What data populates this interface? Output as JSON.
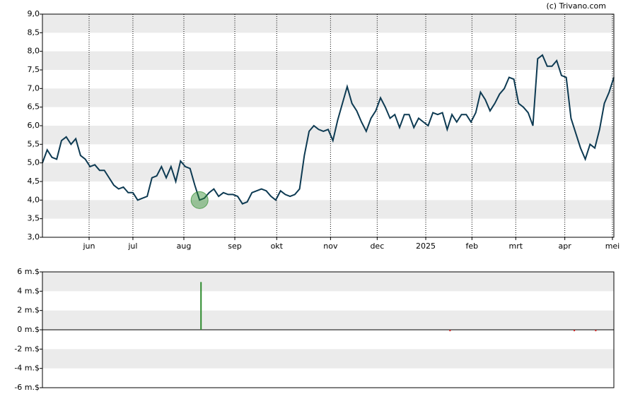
{
  "chart_data": [
    {
      "type": "line",
      "credit": "(c) Trivano.com",
      "color": "#0d3a52",
      "band_color": "#ebebeb",
      "grid": true,
      "xlim": [
        0,
        120
      ],
      "xticks": [
        {
          "value": 9.8,
          "label": "jun"
        },
        {
          "value": 19.0,
          "label": "jul"
        },
        {
          "value": 29.7,
          "label": "aug"
        },
        {
          "value": 40.4,
          "label": "sep"
        },
        {
          "value": 49.2,
          "label": "okt"
        },
        {
          "value": 60.5,
          "label": "nov"
        },
        {
          "value": 70.3,
          "label": "dec"
        },
        {
          "value": 80.5,
          "label": "2025"
        },
        {
          "value": 90.2,
          "label": "feb"
        },
        {
          "value": 99.4,
          "label": "mrt"
        },
        {
          "value": 109.7,
          "label": "apr"
        },
        {
          "value": 119.7,
          "label": "mei"
        }
      ],
      "ylim": [
        3,
        9
      ],
      "yticks": [
        {
          "value": 3,
          "label": "3,0"
        },
        {
          "value": 3.5,
          "label": "3,5"
        },
        {
          "value": 4,
          "label": "4,0"
        },
        {
          "value": 4.5,
          "label": "4,5"
        },
        {
          "value": 5,
          "label": "5,0"
        },
        {
          "value": 5.5,
          "label": "5,5"
        },
        {
          "value": 6,
          "label": "6,0"
        },
        {
          "value": 6.5,
          "label": "6,5"
        },
        {
          "value": 7,
          "label": "7,0"
        },
        {
          "value": 7.5,
          "label": "7,5"
        },
        {
          "value": 8,
          "label": "8,0"
        },
        {
          "value": 8.5,
          "label": "8,5"
        },
        {
          "value": 9,
          "label": "9,0"
        }
      ],
      "values": [
        5.0,
        5.35,
        5.15,
        5.1,
        5.6,
        5.7,
        5.5,
        5.65,
        5.2,
        5.1,
        4.9,
        4.95,
        4.8,
        4.8,
        4.6,
        4.4,
        4.3,
        4.35,
        4.2,
        4.2,
        4.0,
        4.05,
        4.1,
        4.6,
        4.65,
        4.9,
        4.6,
        4.9,
        4.5,
        5.05,
        4.9,
        4.85,
        4.4,
        4.0,
        4.05,
        4.2,
        4.3,
        4.1,
        4.2,
        4.15,
        4.15,
        4.1,
        3.9,
        3.95,
        4.2,
        4.25,
        4.3,
        4.25,
        4.1,
        4.0,
        4.25,
        4.15,
        4.1,
        4.15,
        4.3,
        5.2,
        5.85,
        6.0,
        5.9,
        5.85,
        5.9,
        5.6,
        6.15,
        6.6,
        7.05,
        6.6,
        6.4,
        6.1,
        5.85,
        6.2,
        6.4,
        6.75,
        6.5,
        6.2,
        6.3,
        5.95,
        6.3,
        6.3,
        5.95,
        6.2,
        6.1,
        6.0,
        6.35,
        6.3,
        6.35,
        5.9,
        6.3,
        6.1,
        6.3,
        6.3,
        6.1,
        6.35,
        6.9,
        6.7,
        6.4,
        6.6,
        6.85,
        7.0,
        7.3,
        7.25,
        6.6,
        6.5,
        6.35,
        6.0,
        7.8,
        7.9,
        7.6,
        7.6,
        7.75,
        7.35,
        7.3,
        6.2,
        5.8,
        5.4,
        5.1,
        5.5,
        5.4,
        5.9,
        6.6,
        6.9,
        7.3
      ],
      "highlight": 33
    },
    {
      "type": "bar",
      "band_color": "#ebebeb",
      "xlim": [
        0,
        120
      ],
      "ylim": [
        -6,
        6
      ],
      "yticks": [
        {
          "value": -6,
          "label": "-6 m.$"
        },
        {
          "value": -4,
          "label": "-4 m.$"
        },
        {
          "value": -2,
          "label": "-2 m.$"
        },
        {
          "value": 0,
          "label": "0 m.$"
        },
        {
          "value": 2,
          "label": "2 m.$"
        },
        {
          "value": 4,
          "label": "4 m.$"
        },
        {
          "value": 6,
          "label": "6 m.$"
        }
      ],
      "x": [
        33.3,
        85.6,
        111.7,
        116.2
      ],
      "values": [
        4.95,
        -0.15,
        -0.15,
        -0.15
      ],
      "colors": [
        "#2e8b2e",
        "#cc2222",
        "#cc2222",
        "#cc2222"
      ]
    }
  ]
}
